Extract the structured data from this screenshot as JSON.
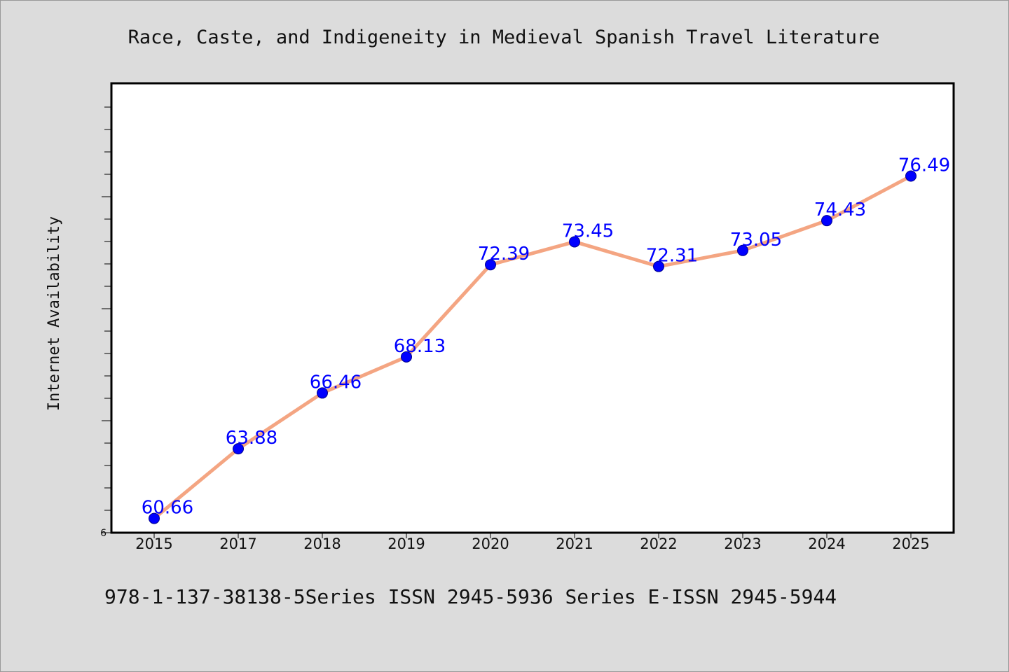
{
  "chart_data": {
    "type": "line",
    "title": "Race, Caste, and Indigeneity in Medieval Spanish Travel Literature",
    "xlabel": "",
    "ylabel": "Internet Availability",
    "categories": [
      "2015",
      "2017",
      "2018",
      "2019",
      "2020",
      "2021",
      "2022",
      "2023",
      "2024",
      "2025"
    ],
    "series": [
      {
        "values": [
          60.66,
          63.88,
          66.46,
          68.13,
          72.39,
          73.45,
          72.31,
          73.05,
          74.43,
          76.49
        ]
      }
    ],
    "data_labels": [
      "60.66",
      "63.88",
      "66.46",
      "68.13",
      "72.39",
      "73.45",
      "72.31",
      "73.05",
      "74.43",
      "76.49"
    ],
    "ylim": [
      60.0,
      80.0
    ],
    "yticks_labeled": [
      "6"
    ],
    "grid": false,
    "legend": "none",
    "colors": {
      "line": "#f4a582",
      "marker": "#0000ff",
      "data_label": "#0000ff",
      "plot_background": "#ffffff",
      "figure_background": "#dcdcdc"
    }
  },
  "footer": {
    "text": "978-1-137-38138-5Series ISSN 2945-5936 Series E-ISSN 2945-5944"
  }
}
